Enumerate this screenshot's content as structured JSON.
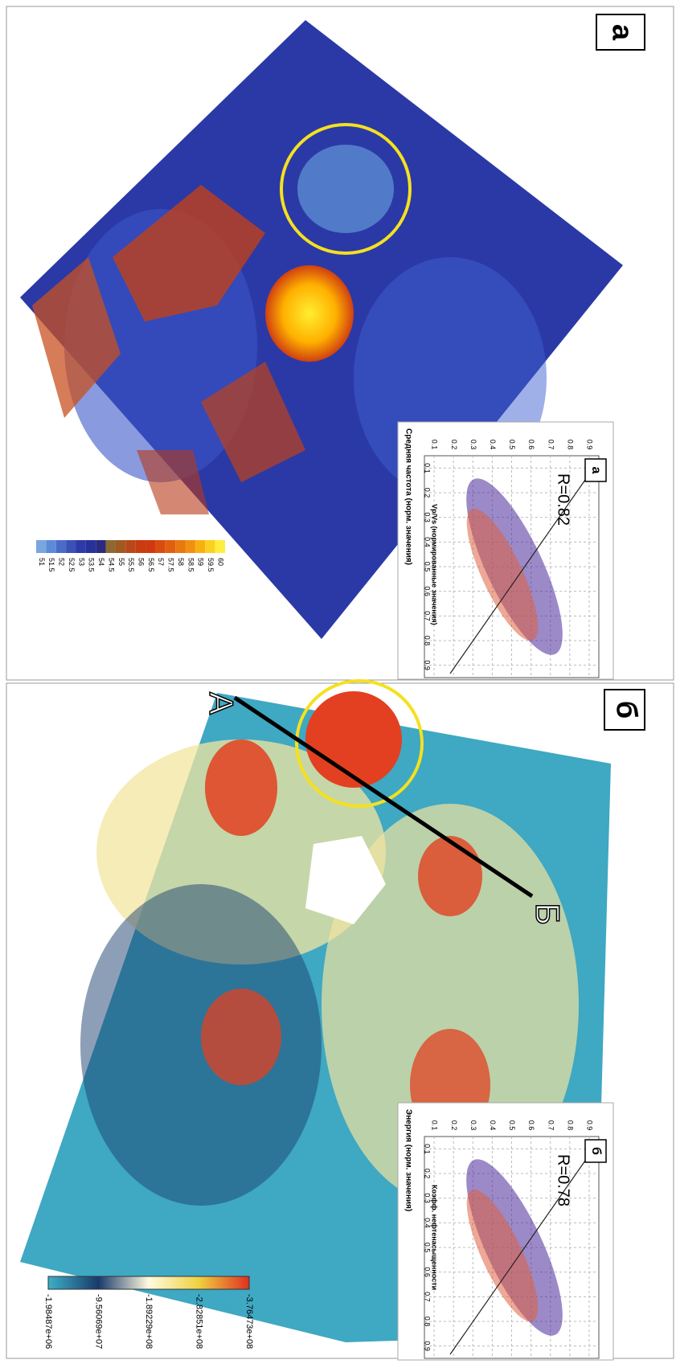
{
  "panels": [
    {
      "label": "а",
      "colorbar": {
        "labels": [
          51,
          51.5,
          52,
          52.5,
          53,
          53.5,
          54,
          54.5,
          55,
          55.5,
          56,
          56.5,
          57,
          57.5,
          58,
          58.5,
          59,
          59.5,
          60
        ]
      },
      "inset": {
        "label": "а",
        "r": "R=0.82",
        "x_title": "Средняя частота (норм. значения)",
        "y_title": "Vp/Vs (нормированные значения)",
        "x_ticks": [
          0.1,
          0.2,
          0.3,
          0.4,
          0.5,
          0.6,
          0.7,
          0.8,
          0.9
        ],
        "y_ticks": [
          0.1,
          0.2,
          0.3,
          0.4,
          0.5,
          0.6,
          0.7,
          0.8,
          0.9
        ]
      }
    },
    {
      "label": "б",
      "colorbar": {
        "labels": [
          "-1.98487e+06",
          "-9.56069e+07",
          "-1.89229e+08",
          "-2.82851e+08",
          "-3.76473e+08"
        ]
      },
      "points": [
        "А",
        "Б"
      ],
      "inset": {
        "label": "б",
        "r": "R=0.78",
        "x_title": "Энергия (норм. значения)",
        "y_title": "Коэфф. нефтенасыщенности",
        "x_ticks": [
          0.1,
          0.2,
          0.3,
          0.4,
          0.5,
          0.6,
          0.7,
          0.8,
          0.9
        ],
        "y_ticks": [
          0.1,
          0.2,
          0.3,
          0.4,
          0.5,
          0.6,
          0.7,
          0.8,
          0.9
        ]
      }
    }
  ]
}
